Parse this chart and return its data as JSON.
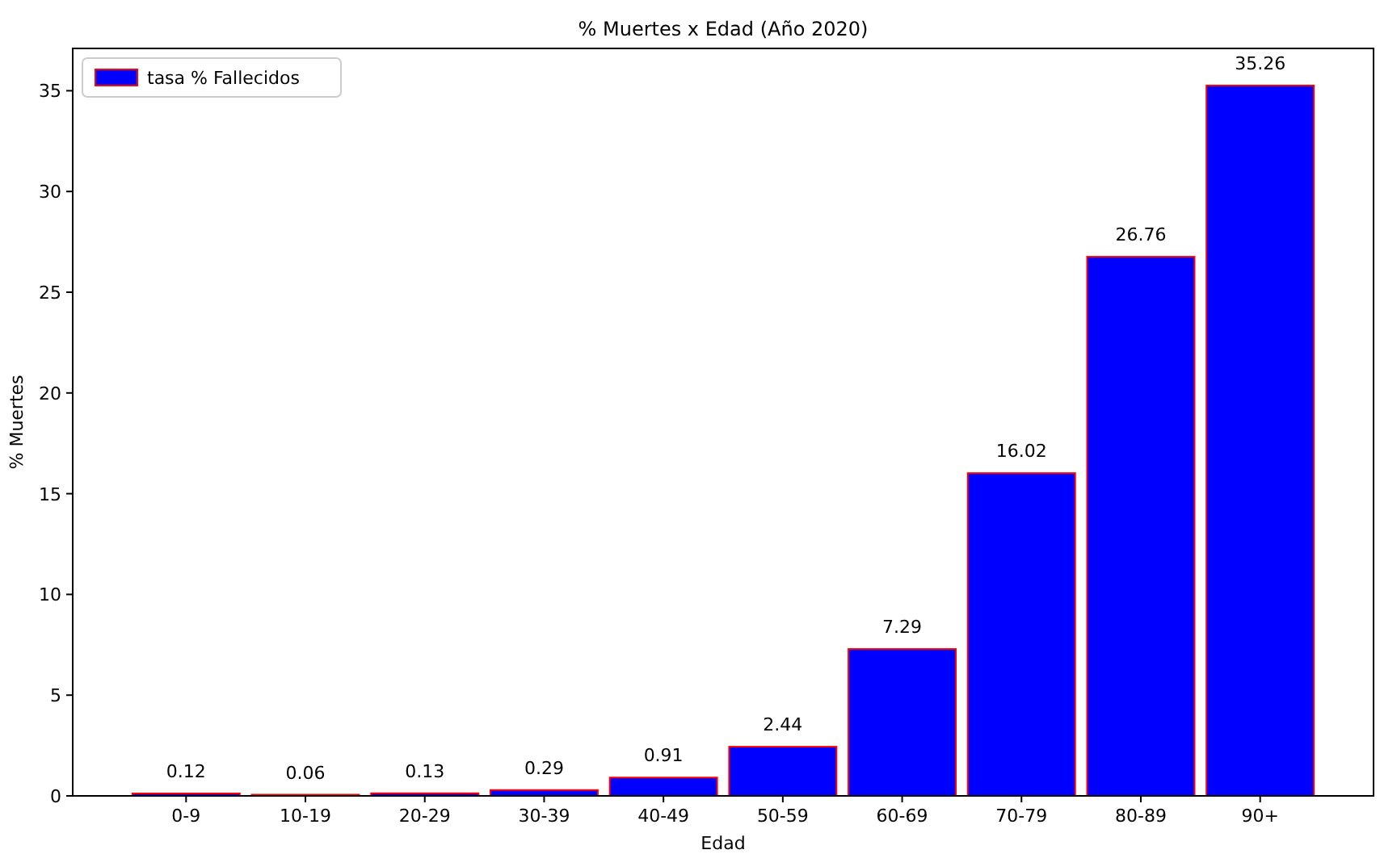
{
  "chart_data": {
    "type": "bar",
    "title": "% Muertes x Edad (Año 2020)",
    "xlabel": "Edad",
    "ylabel": "% Muertes",
    "categories": [
      "0-9",
      "10-19",
      "20-29",
      "30-39",
      "40-49",
      "50-59",
      "60-69",
      "70-79",
      "80-89",
      "90+"
    ],
    "series": [
      {
        "name": "tasa % Fallecidos",
        "color": "#0000ff",
        "values": [
          0.12,
          0.06,
          0.13,
          0.29,
          0.91,
          2.44,
          7.29,
          16.02,
          26.76,
          35.26
        ]
      }
    ],
    "ylim": [
      0,
      37.1
    ],
    "yticks": [
      0,
      5,
      10,
      15,
      20,
      25,
      30,
      35
    ],
    "data_labels": true,
    "legend": "top left",
    "grid": false
  }
}
